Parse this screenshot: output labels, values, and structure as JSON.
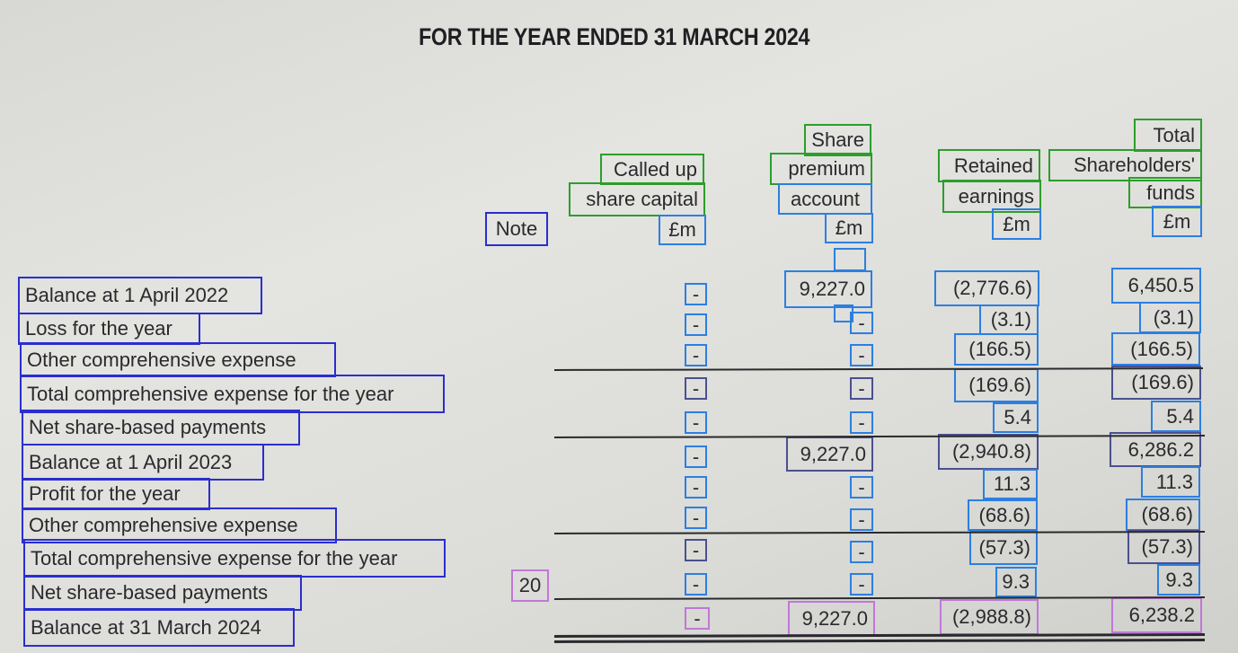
{
  "title": "FOR THE YEAR ENDED 31 MARCH 2024",
  "headers": {
    "note": "Note",
    "called_up_1": "Called up",
    "called_up_2": "share capital",
    "premium_1": "Share",
    "premium_2": "premium",
    "premium_3": "account",
    "retained_1": "Retained",
    "retained_2": "earnings",
    "total_1": "Total",
    "total_2": "Shareholders'",
    "total_3": "funds",
    "currency": "£m"
  },
  "rows": [
    {
      "label": "Balance at 1 April 2022",
      "note": "",
      "share_capital": "-",
      "share_premium": "9,227.0",
      "retained": "(2,776.6)",
      "total": "6,450.5"
    },
    {
      "label": "Loss for the year",
      "note": "",
      "share_capital": "-",
      "share_premium": "-",
      "retained": "(3.1)",
      "total": "(3.1)"
    },
    {
      "label": "Other comprehensive expense",
      "note": "",
      "share_capital": "-",
      "share_premium": "-",
      "retained": "(166.5)",
      "total": "(166.5)"
    },
    {
      "label": "Total comprehensive expense for the year",
      "note": "",
      "share_capital": "-",
      "share_premium": "-",
      "retained": "(169.6)",
      "total": "(169.6)"
    },
    {
      "label": "Net share-based payments",
      "note": "",
      "share_capital": "-",
      "share_premium": "-",
      "retained": "5.4",
      "total": "5.4"
    },
    {
      "label": "Balance at 1 April 2023",
      "note": "",
      "share_capital": "-",
      "share_premium": "9,227.0",
      "retained": "(2,940.8)",
      "total": "6,286.2"
    },
    {
      "label": "Profit for the year",
      "note": "",
      "share_capital": "-",
      "share_premium": "-",
      "retained": "11.3",
      "total": "11.3"
    },
    {
      "label": "Other comprehensive expense",
      "note": "",
      "share_capital": "-",
      "share_premium": "-",
      "retained": "(68.6)",
      "total": "(68.6)"
    },
    {
      "label": "Total comprehensive expense for the year",
      "note": "",
      "share_capital": "-",
      "share_premium": "-",
      "retained": "(57.3)",
      "total": "(57.3)"
    },
    {
      "label": "Net share-based payments",
      "note": "20",
      "share_capital": "-",
      "share_premium": "-",
      "retained": "9.3",
      "total": "9.3"
    },
    {
      "label": "Balance at 31 March 2024",
      "note": "",
      "share_capital": "-",
      "share_premium": "9,227.0",
      "retained": "(2,988.8)",
      "total": "6,238.2"
    }
  ]
}
